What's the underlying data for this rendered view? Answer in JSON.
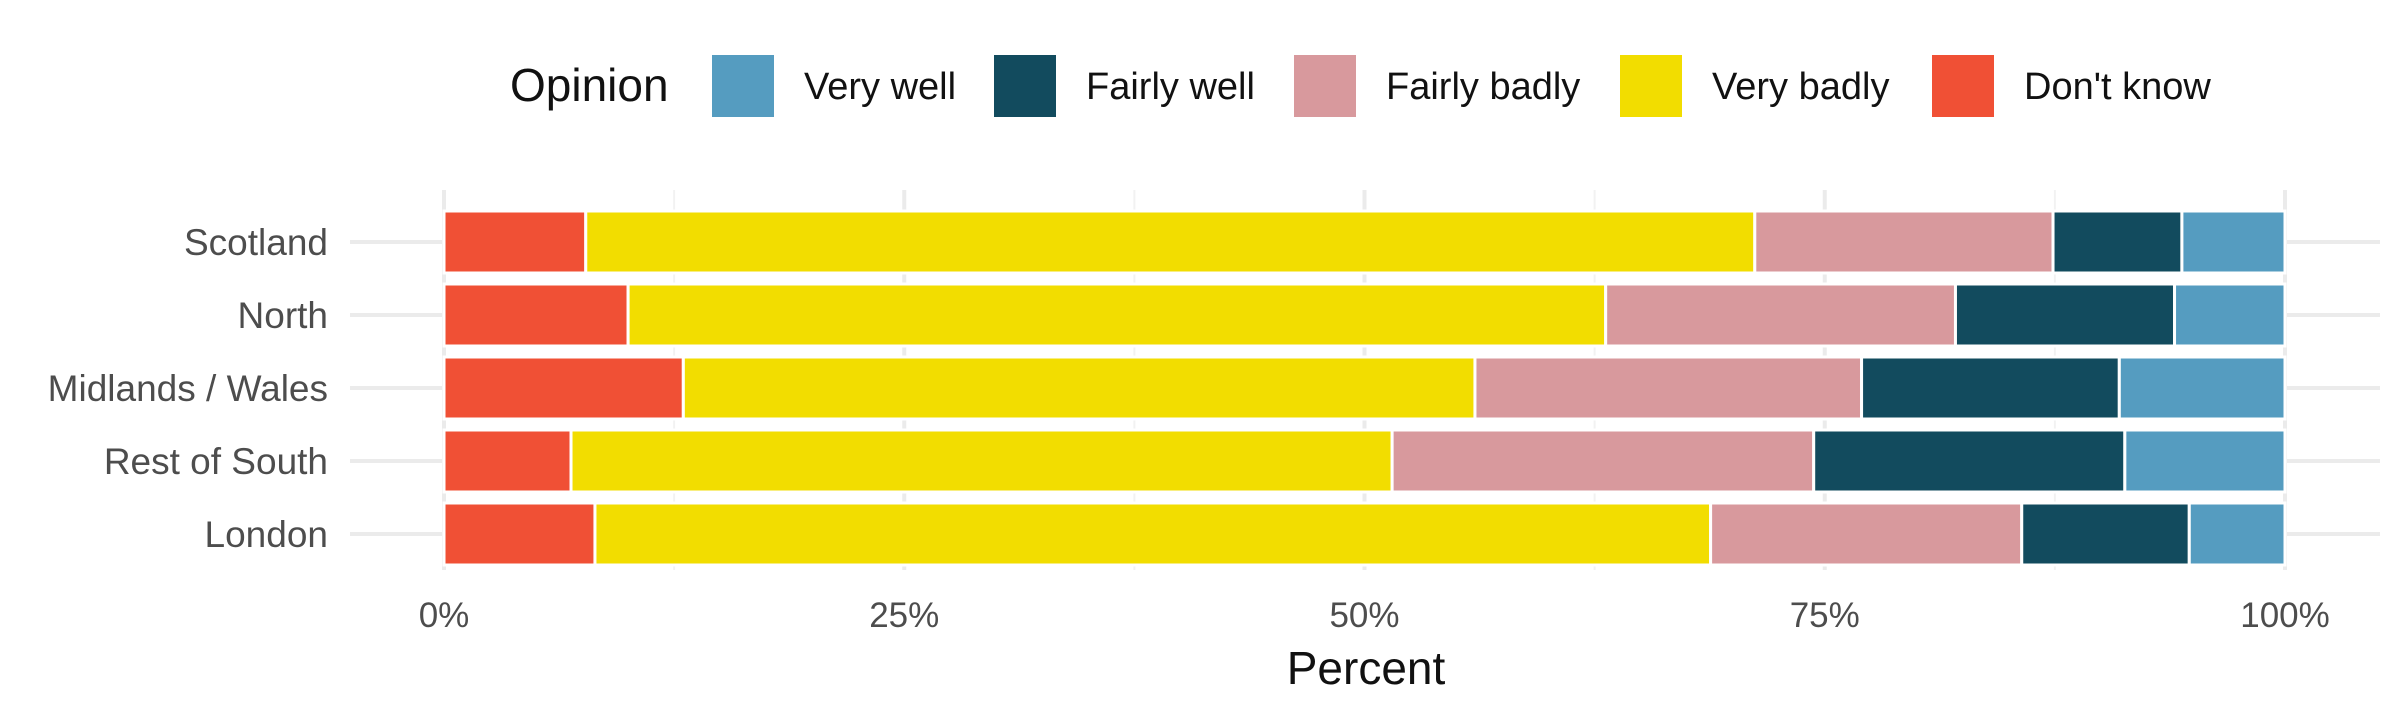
{
  "chart_data": {
    "type": "bar",
    "orientation": "horizontal",
    "stacked": true,
    "xlabel": "Percent",
    "ylabel": "",
    "xlim": [
      0,
      100
    ],
    "x_ticks": [
      0,
      25,
      50,
      75,
      100
    ],
    "x_tick_labels": [
      "0%",
      "25%",
      "50%",
      "75%",
      "100%"
    ],
    "grid": true,
    "legend": {
      "title": "Opinion",
      "position": "top"
    },
    "categories": [
      "Scotland",
      "North",
      "Midlands / Wales",
      "Rest of South",
      "London"
    ],
    "series": [
      {
        "name": "Don't know",
        "color": "#F05035",
        "values": [
          7.7,
          10.0,
          13.0,
          6.9,
          8.2
        ]
      },
      {
        "name": "Very badly",
        "color": "#F2DD00",
        "values": [
          63.5,
          53.1,
          43.0,
          44.6,
          60.6
        ]
      },
      {
        "name": "Fairly badly",
        "color": "#D8999D",
        "values": [
          16.2,
          19.0,
          21.0,
          22.9,
          16.9
        ]
      },
      {
        "name": "Fairly well",
        "color": "#124B5E",
        "values": [
          7.0,
          11.9,
          14.0,
          16.9,
          9.1
        ]
      },
      {
        "name": "Very well",
        "color": "#559CC0",
        "values": [
          5.6,
          6.0,
          9.0,
          8.7,
          5.2
        ]
      }
    ],
    "legend_order": [
      "Very well",
      "Fairly well",
      "Fairly badly",
      "Very badly",
      "Don't know"
    ]
  }
}
